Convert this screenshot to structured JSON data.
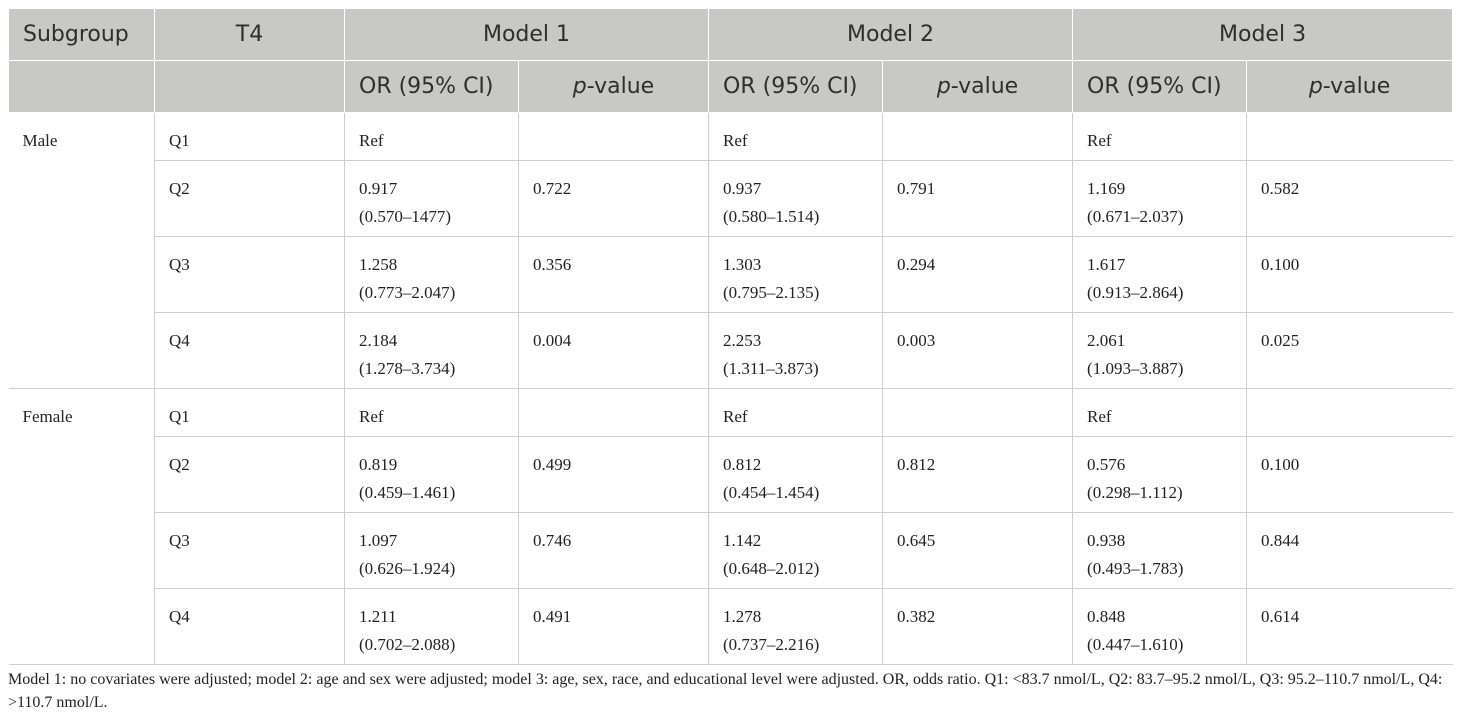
{
  "header": {
    "subgroup": "Subgroup",
    "t4": "T4",
    "models": [
      "Model 1",
      "Model 2",
      "Model 3"
    ],
    "or_label": "OR (95% CI)",
    "p_prefix": "p",
    "p_suffix": "-value"
  },
  "groups": [
    {
      "name": "Male",
      "rows": [
        {
          "q": "Q1",
          "cells": [
            [
              "Ref",
              ""
            ],
            "",
            [
              "Ref",
              ""
            ],
            "",
            [
              "Ref",
              ""
            ],
            ""
          ]
        },
        {
          "q": "Q2",
          "cells": [
            [
              "0.917",
              "(0.570–1477)"
            ],
            "0.722",
            [
              "0.937",
              "(0.580–1.514)"
            ],
            "0.791",
            [
              "1.169",
              "(0.671–2.037)"
            ],
            "0.582"
          ]
        },
        {
          "q": "Q3",
          "cells": [
            [
              "1.258",
              "(0.773–2.047)"
            ],
            "0.356",
            [
              "1.303",
              "(0.795–2.135)"
            ],
            "0.294",
            [
              "1.617",
              "(0.913–2.864)"
            ],
            "0.100"
          ]
        },
        {
          "q": "Q4",
          "cells": [
            [
              "2.184",
              "(1.278–3.734)"
            ],
            "0.004",
            [
              "2.253",
              "(1.311–3.873)"
            ],
            "0.003",
            [
              "2.061",
              "(1.093–3.887)"
            ],
            "0.025"
          ]
        }
      ]
    },
    {
      "name": "Female",
      "rows": [
        {
          "q": "Q1",
          "cells": [
            [
              "Ref",
              ""
            ],
            "",
            [
              "Ref",
              ""
            ],
            "",
            [
              "Ref",
              ""
            ],
            ""
          ]
        },
        {
          "q": "Q2",
          "cells": [
            [
              "0.819",
              "(0.459–1.461)"
            ],
            "0.499",
            [
              "0.812",
              "(0.454–1.454)"
            ],
            "0.812",
            [
              "0.576",
              "(0.298–1.112)"
            ],
            "0.100"
          ]
        },
        {
          "q": "Q3",
          "cells": [
            [
              "1.097",
              "(0.626–1.924)"
            ],
            "0.746",
            [
              "1.142",
              "(0.648–2.012)"
            ],
            "0.645",
            [
              "0.938",
              "(0.493–1.783)"
            ],
            "0.844"
          ]
        },
        {
          "q": "Q4",
          "cells": [
            [
              "1.211",
              "(0.702–2.088)"
            ],
            "0.491",
            [
              "1.278",
              "(0.737–2.216)"
            ],
            "0.382",
            [
              "0.848",
              "(0.447–1.610)"
            ],
            "0.614"
          ]
        }
      ]
    }
  ],
  "footnote": "Model 1: no covariates were adjusted; model 2: age and sex were adjusted; model 3: age, sex, race, and educational level were adjusted. OR, odds ratio. Q1: <83.7 nmol/L, Q2: 83.7–95.2 nmol/L, Q3: 95.2–110.7 nmol/L, Q4: >110.7 nmol/L."
}
